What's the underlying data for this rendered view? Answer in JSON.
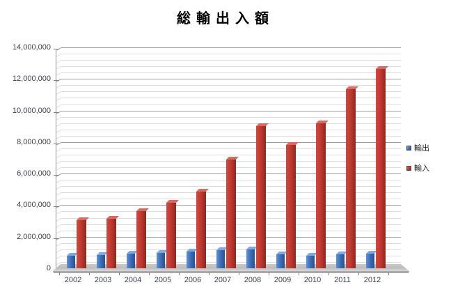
{
  "title": "総輸出入額",
  "chart_data": {
    "type": "bar",
    "style": "3d-clustered-column",
    "title": "総輸出入額",
    "categories": [
      "2002",
      "2003",
      "2004",
      "2005",
      "2006",
      "2007",
      "2008",
      "2009",
      "2010",
      "2011",
      "2012"
    ],
    "series": [
      {
        "name": "輸出",
        "color": "#3e6db4",
        "values": [
          780000,
          850000,
          930000,
          980000,
          1050000,
          1130000,
          1200000,
          870000,
          800000,
          870000,
          920000
        ]
      },
      {
        "name": "輸入",
        "color": "#c03a31",
        "values": [
          3050000,
          3150000,
          3600000,
          4150000,
          4850000,
          6900000,
          9000000,
          7800000,
          9200000,
          11350000,
          12650000
        ]
      }
    ],
    "xlabel": "",
    "ylabel": "",
    "ylim": [
      0,
      14000000
    ],
    "y_major_step": 2000000,
    "y_minor_step": 400000,
    "y_tick_labels": [
      "0",
      "2,000,000",
      "4,000,000",
      "6,000,000",
      "8,000,000",
      "10,000,000",
      "12,000,000",
      "14,000,000"
    ],
    "grid": "horizontal major+minor",
    "legend_position": "right"
  },
  "colors": {
    "background": "#ffffff",
    "grid_major": "#9a9a9a",
    "grid_minor": "#dcdcdc",
    "axis_text": "#3f3f4c",
    "floor": "#c0c0c0",
    "export_bar": "#3e6db4",
    "import_bar": "#c03a31"
  }
}
